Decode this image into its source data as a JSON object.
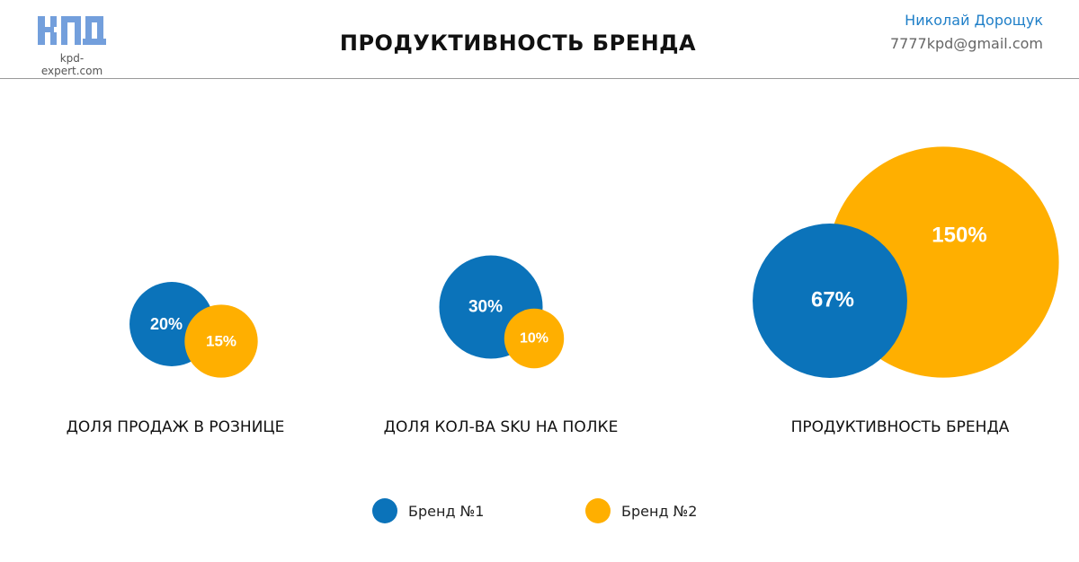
{
  "header": {
    "logo_text": "kpd-expert.com",
    "title": "ПРОДУКТИВНОСТЬ БРЕНДА",
    "author_name": "Николай Дорощук",
    "author_email": "7777kpd@gmail.com"
  },
  "colors": {
    "brand1": "#0b73ba",
    "brand2": "#ffaf00",
    "accent": "#1f7fc8"
  },
  "chart_data": {
    "type": "bubble",
    "categories": [
      "ДОЛЯ ПРОДАЖ В РОЗНИЦЕ",
      "ДОЛЯ КОЛ-ВА SKU НА ПОЛКЕ",
      "ПРОДУКТИВНОСТЬ БРЕНДА"
    ],
    "series": [
      {
        "name": "Бренд №1",
        "values": [
          20,
          30,
          67
        ],
        "labels": [
          "20%",
          "30%",
          "67%"
        ],
        "color": "#0b73ba"
      },
      {
        "name": "Бренд №2",
        "values": [
          15,
          10,
          150
        ],
        "labels": [
          "15%",
          "10%",
          "150%"
        ],
        "color": "#ffaf00"
      }
    ]
  },
  "legend": [
    {
      "label": "Бренд №1",
      "color": "#0b73ba"
    },
    {
      "label": "Бренд №2",
      "color": "#ffaf00"
    }
  ]
}
